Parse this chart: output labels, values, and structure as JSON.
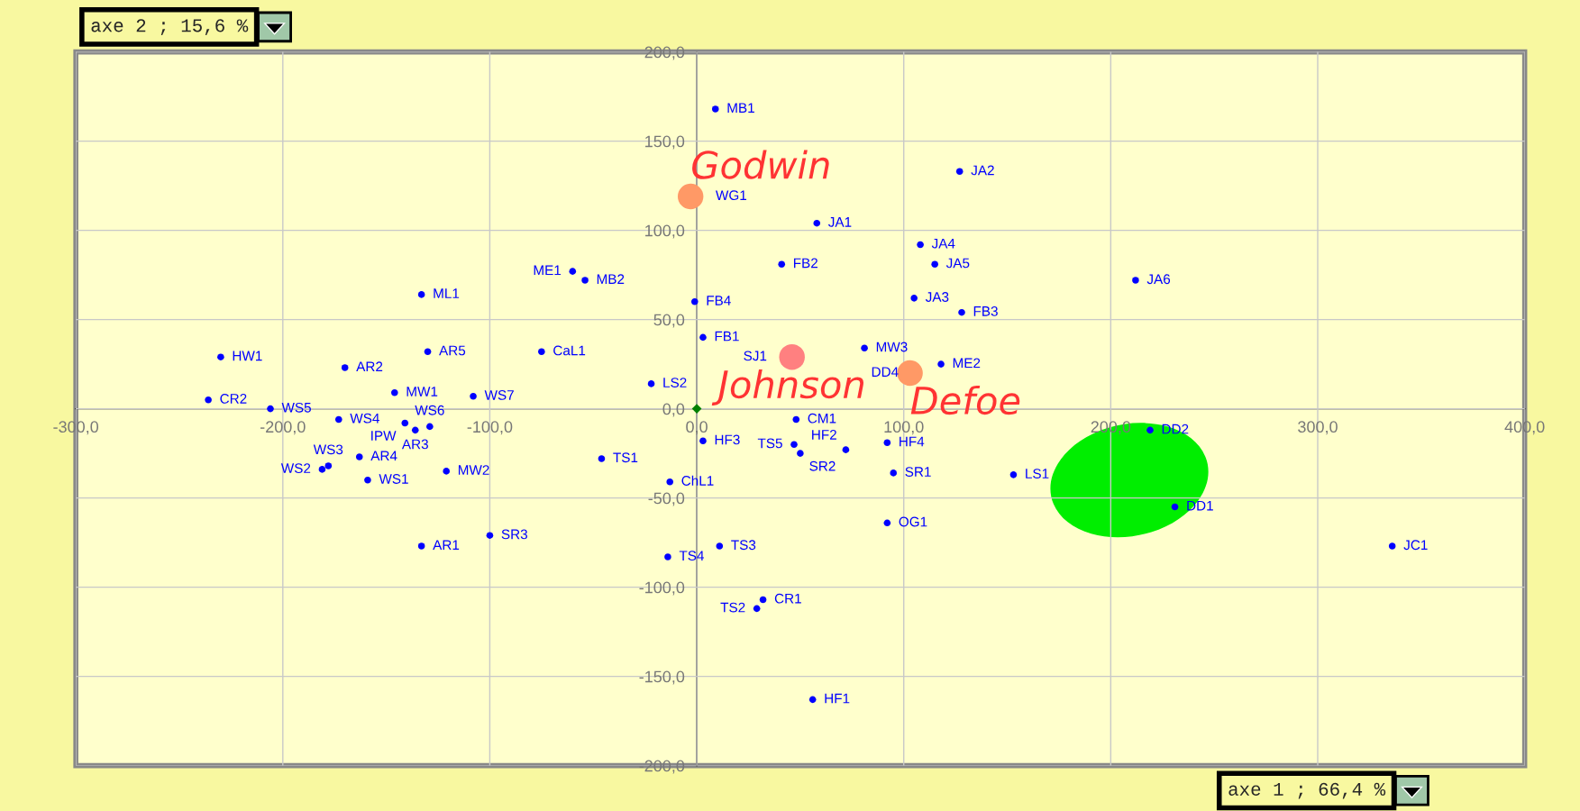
{
  "chart_data": {
    "type": "scatter",
    "xlabel": "axe 1 ; 66,4 %",
    "ylabel": "axe 2 ; 15,6 %",
    "xlim": [
      -300,
      400
    ],
    "ylim": [
      -200,
      200
    ],
    "xticks": [
      {
        "value": -300,
        "label": "-300,0"
      },
      {
        "value": -200,
        "label": "-200,0"
      },
      {
        "value": -100,
        "label": "-100,0"
      },
      {
        "value": 0,
        "label": "0,0"
      },
      {
        "value": 100,
        "label": "100,0"
      },
      {
        "value": 200,
        "label": "200,0"
      },
      {
        "value": 300,
        "label": "300,0"
      },
      {
        "value": 400,
        "label": "400,0"
      }
    ],
    "yticks": [
      {
        "value": -200,
        "label": "-200,0"
      },
      {
        "value": -150,
        "label": "-150,0"
      },
      {
        "value": -100,
        "label": "-100,0"
      },
      {
        "value": -50,
        "label": "-50,0"
      },
      {
        "value": 0,
        "label": "0,0"
      },
      {
        "value": 50,
        "label": "50,0"
      },
      {
        "value": 100,
        "label": "100,0"
      },
      {
        "value": 150,
        "label": "150,0"
      },
      {
        "value": 200,
        "label": "200,0"
      }
    ],
    "grid": true,
    "marker": "circle",
    "annotations": [
      {
        "text": "Godwin",
        "x": -3,
        "y": 119
      },
      {
        "text": "Johnson",
        "x": 46,
        "y": 29
      },
      {
        "text": "Defoe",
        "x": 103,
        "y": 20
      }
    ],
    "series": [
      {
        "name": "MB1",
        "x": [
          9
        ],
        "values": [
          168
        ],
        "color": "#0000ff"
      },
      {
        "name": "JA2",
        "x": [
          127
        ],
        "values": [
          133
        ],
        "color": "#0000ff"
      },
      {
        "name": "WG1",
        "type": "bubble",
        "sizes": [
          1
        ],
        "x": [
          -3
        ],
        "values": [
          119
        ],
        "color": "#ff9966"
      },
      {
        "name": "JA1",
        "x": [
          58
        ],
        "values": [
          104
        ],
        "color": "#0000ff"
      },
      {
        "name": "JA4",
        "x": [
          108
        ],
        "values": [
          92
        ],
        "color": "#0000ff"
      },
      {
        "name": "JA5",
        "x": [
          115
        ],
        "values": [
          81
        ],
        "color": "#0000ff"
      },
      {
        "name": "FB2",
        "x": [
          41
        ],
        "values": [
          81
        ],
        "color": "#0000ff"
      },
      {
        "name": "ME1",
        "x": [
          -60
        ],
        "values": [
          77
        ],
        "color": "#0000ff"
      },
      {
        "name": "MB2",
        "x": [
          -54
        ],
        "values": [
          72
        ],
        "color": "#0000ff"
      },
      {
        "name": "ML1",
        "x": [
          -133
        ],
        "values": [
          64
        ],
        "color": "#0000ff"
      },
      {
        "name": "JA6",
        "x": [
          212
        ],
        "values": [
          72
        ],
        "color": "#0000ff"
      },
      {
        "name": "FB4",
        "x": [
          -1
        ],
        "values": [
          60
        ],
        "color": "#0000ff"
      },
      {
        "name": "JA3",
        "x": [
          105
        ],
        "values": [
          62
        ],
        "color": "#0000ff"
      },
      {
        "name": "FB3",
        "x": [
          128
        ],
        "values": [
          54
        ],
        "color": "#0000ff"
      },
      {
        "name": "FB1",
        "x": [
          3
        ],
        "values": [
          40
        ],
        "color": "#0000ff"
      },
      {
        "name": "HW1",
        "x": [
          -230
        ],
        "values": [
          29
        ],
        "color": "#0000ff"
      },
      {
        "name": "AR2",
        "x": [
          -170
        ],
        "values": [
          23
        ],
        "color": "#0000ff"
      },
      {
        "name": "AR5",
        "x": [
          -130
        ],
        "values": [
          32
        ],
        "color": "#0000ff"
      },
      {
        "name": "CaL1",
        "x": [
          -75
        ],
        "values": [
          32
        ],
        "color": "#0000ff"
      },
      {
        "name": "SJ1",
        "type": "bubble",
        "sizes": [
          1
        ],
        "x": [
          46
        ],
        "values": [
          29
        ],
        "color": "#ff8080"
      },
      {
        "name": "MW3",
        "x": [
          81
        ],
        "values": [
          34
        ],
        "color": "#0000ff"
      },
      {
        "name": "DD4",
        "type": "bubble",
        "sizes": [
          1
        ],
        "x": [
          103
        ],
        "values": [
          20
        ],
        "color": "#ff9966"
      },
      {
        "name": "ME2",
        "x": [
          118
        ],
        "values": [
          25
        ],
        "color": "#0000ff"
      },
      {
        "name": "LS2",
        "x": [
          -22
        ],
        "values": [
          14
        ],
        "color": "#0000ff"
      },
      {
        "name": "CR2",
        "x": [
          -236
        ],
        "values": [
          5
        ],
        "color": "#0000ff"
      },
      {
        "name": "MW1",
        "x": [
          -146
        ],
        "values": [
          9
        ],
        "color": "#0000ff"
      },
      {
        "name": "WS7",
        "x": [
          -108
        ],
        "values": [
          7
        ],
        "color": "#0000ff"
      },
      {
        "name": "WS5",
        "x": [
          -206
        ],
        "values": [
          0
        ],
        "color": "#0000ff"
      },
      {
        "name": "WS4",
        "x": [
          -173
        ],
        "values": [
          -6
        ],
        "color": "#0000ff"
      },
      {
        "name": "IPW",
        "x": [
          -141
        ],
        "values": [
          -8
        ],
        "color": "#0000ff"
      },
      {
        "name": "AR3",
        "x": [
          -136
        ],
        "values": [
          -12
        ],
        "color": "#0000ff"
      },
      {
        "name": "WS6",
        "x": [
          -129
        ],
        "values": [
          -10
        ],
        "color": "#0000ff"
      },
      {
        "name": "AR4",
        "x": [
          -163
        ],
        "values": [
          -27
        ],
        "color": "#0000ff"
      },
      {
        "name": "WS3",
        "x": [
          -178
        ],
        "values": [
          -32
        ],
        "color": "#0000ff"
      },
      {
        "name": "WS2",
        "x": [
          -181
        ],
        "values": [
          -34
        ],
        "color": "#0000ff"
      },
      {
        "name": "WS1",
        "x": [
          -159
        ],
        "values": [
          -40
        ],
        "color": "#0000ff"
      },
      {
        "name": "MW2",
        "x": [
          -121
        ],
        "values": [
          -35
        ],
        "color": "#0000ff"
      },
      {
        "name": "AR1",
        "x": [
          -133
        ],
        "values": [
          -77
        ],
        "color": "#0000ff"
      },
      {
        "name": "SR3",
        "x": [
          -100
        ],
        "values": [
          -71
        ],
        "color": "#0000ff"
      },
      {
        "name": "TS1",
        "x": [
          -46
        ],
        "values": [
          -28
        ],
        "color": "#0000ff"
      },
      {
        "name": "ChL1",
        "x": [
          -13
        ],
        "values": [
          -41
        ],
        "color": "#0000ff"
      },
      {
        "name": "TS4",
        "x": [
          -14
        ],
        "values": [
          -83
        ],
        "color": "#0000ff"
      },
      {
        "name": "TS3",
        "x": [
          11
        ],
        "values": [
          -77
        ],
        "color": "#0000ff"
      },
      {
        "name": "CR1",
        "x": [
          32
        ],
        "values": [
          -107
        ],
        "color": "#0000ff"
      },
      {
        "name": "TS2",
        "x": [
          29
        ],
        "values": [
          -112
        ],
        "color": "#0000ff"
      },
      {
        "name": "HF1",
        "x": [
          56
        ],
        "values": [
          -163
        ],
        "color": "#0000ff"
      },
      {
        "name": "HF3",
        "x": [
          3
        ],
        "values": [
          -18
        ],
        "color": "#0000ff"
      },
      {
        "name": "CM1",
        "x": [
          48
        ],
        "values": [
          -6
        ],
        "color": "#0000ff"
      },
      {
        "name": "TS5",
        "x": [
          47
        ],
        "values": [
          -20
        ],
        "color": "#0000ff"
      },
      {
        "name": "SR2",
        "x": [
          50
        ],
        "values": [
          -25
        ],
        "color": "#0000ff"
      },
      {
        "name": "HF2",
        "x": [
          72
        ],
        "values": [
          -23
        ],
        "color": "#0000ff"
      },
      {
        "name": "HF4",
        "x": [
          92
        ],
        "values": [
          -19
        ],
        "color": "#0000ff"
      },
      {
        "name": "SR1",
        "x": [
          95
        ],
        "values": [
          -36
        ],
        "color": "#0000ff"
      },
      {
        "name": "OG1",
        "x": [
          92
        ],
        "values": [
          -64
        ],
        "color": "#0000ff"
      },
      {
        "name": "LS1",
        "x": [
          153
        ],
        "values": [
          -37
        ],
        "color": "#0000ff"
      },
      {
        "name": "DD2",
        "x": [
          219
        ],
        "values": [
          -12
        ],
        "color": "#0000ff"
      },
      {
        "name": "DD1",
        "x": [
          231
        ],
        "values": [
          -55
        ],
        "color": "#0000ff"
      },
      {
        "name": "JC1",
        "x": [
          336
        ],
        "values": [
          -77
        ],
        "color": "#0000ff"
      },
      {
        "marker": "diamond",
        "x": [
          0
        ],
        "values": [
          0
        ],
        "color": "#008000"
      }
    ]
  }
}
